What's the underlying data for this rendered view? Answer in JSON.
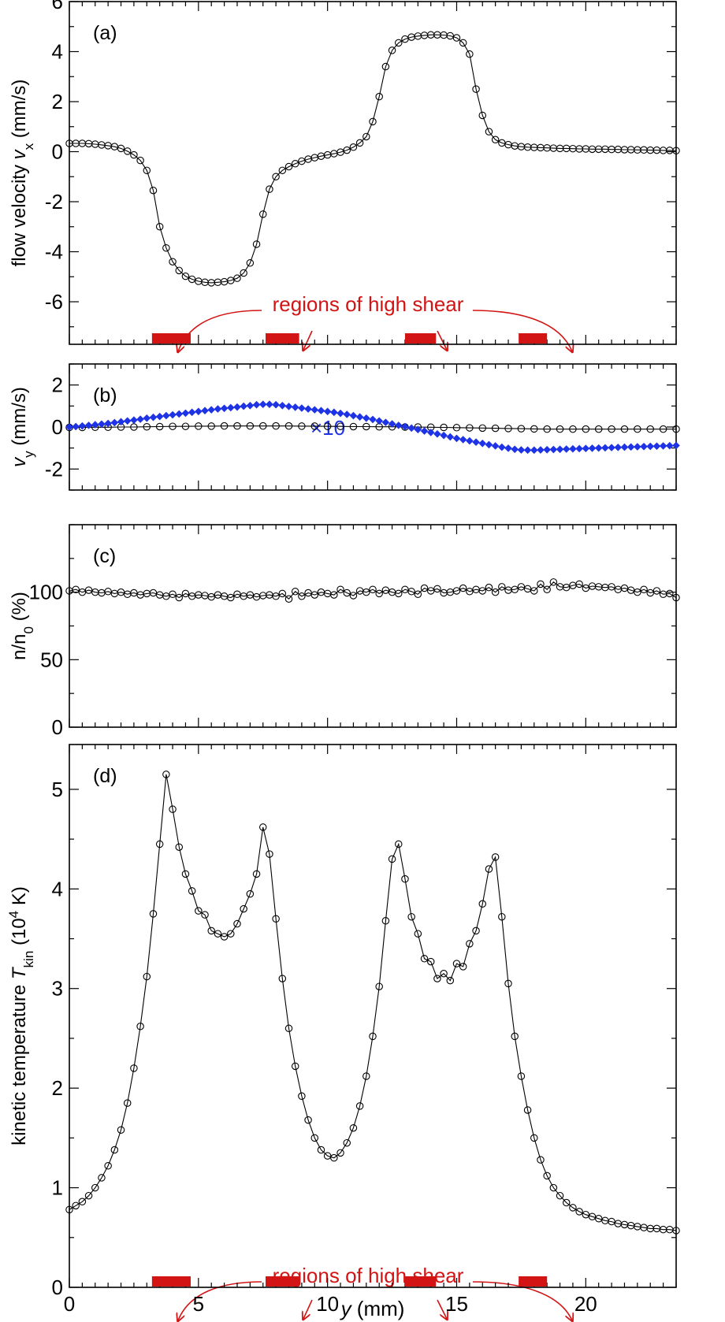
{
  "colors": {
    "axis": "#000000",
    "highlight": "#d21414",
    "blue": "#1e32e6"
  },
  "chart_data": [
    {
      "panel": "a",
      "type": "line",
      "panel_label": "(a)",
      "ylabel_parts": [
        "flow velocity ",
        "v",
        "x",
        " (mm/s)"
      ],
      "ylim": [
        -7.7,
        6
      ],
      "xlim": [
        0,
        23.5
      ],
      "yticks": [
        -6,
        -4,
        -2,
        0,
        2,
        4,
        6
      ],
      "ytick_labels": [
        "-6",
        "-4",
        "-2",
        "0",
        "2",
        "4",
        "6"
      ],
      "shear_regions": [
        [
          3.2,
          4.7
        ],
        [
          7.6,
          8.9
        ],
        [
          13.0,
          14.2
        ],
        [
          17.4,
          18.5
        ]
      ],
      "annotation": "regions of high shear",
      "series": [
        {
          "name": "vx",
          "marker": "open-circle",
          "x": [
            0.0,
            0.25,
            0.5,
            0.75,
            1.0,
            1.25,
            1.5,
            1.75,
            2.0,
            2.25,
            2.5,
            2.75,
            3.0,
            3.25,
            3.5,
            3.75,
            4.0,
            4.25,
            4.5,
            4.75,
            5.0,
            5.25,
            5.5,
            5.75,
            6.0,
            6.25,
            6.5,
            6.75,
            7.0,
            7.25,
            7.5,
            7.75,
            8.0,
            8.25,
            8.5,
            8.75,
            9.0,
            9.25,
            9.5,
            9.75,
            10.0,
            10.25,
            10.5,
            10.75,
            11.0,
            11.25,
            11.5,
            11.75,
            12.0,
            12.25,
            12.5,
            12.75,
            13.0,
            13.25,
            13.5,
            13.75,
            14.0,
            14.25,
            14.5,
            14.75,
            15.0,
            15.25,
            15.5,
            15.75,
            16.0,
            16.25,
            16.5,
            16.75,
            17.0,
            17.25,
            17.5,
            17.75,
            18.0,
            18.25,
            18.5,
            18.75,
            19.0,
            19.25,
            19.5,
            19.75,
            20.0,
            20.25,
            20.5,
            20.75,
            21.0,
            21.25,
            21.5,
            21.75,
            22.0,
            22.25,
            22.5,
            22.75,
            23.0,
            23.25,
            23.5
          ],
          "y": [
            0.33,
            0.33,
            0.33,
            0.32,
            0.3,
            0.27,
            0.24,
            0.2,
            0.13,
            0.02,
            -0.13,
            -0.35,
            -0.75,
            -1.55,
            -3.0,
            -3.85,
            -4.4,
            -4.75,
            -4.98,
            -5.1,
            -5.18,
            -5.22,
            -5.24,
            -5.22,
            -5.2,
            -5.15,
            -5.06,
            -4.85,
            -4.45,
            -3.7,
            -2.5,
            -1.5,
            -1.0,
            -0.75,
            -0.6,
            -0.48,
            -0.38,
            -0.3,
            -0.24,
            -0.18,
            -0.13,
            -0.08,
            -0.02,
            0.06,
            0.18,
            0.35,
            0.6,
            1.2,
            2.2,
            3.4,
            4.05,
            4.35,
            4.5,
            4.58,
            4.62,
            4.65,
            4.67,
            4.67,
            4.66,
            4.63,
            4.55,
            4.35,
            3.9,
            2.5,
            1.45,
            0.8,
            0.48,
            0.35,
            0.28,
            0.23,
            0.2,
            0.18,
            0.17,
            0.16,
            0.15,
            0.14,
            0.13,
            0.13,
            0.12,
            0.11,
            0.11,
            0.1,
            0.1,
            0.1,
            0.09,
            0.09,
            0.08,
            0.08,
            0.07,
            0.07,
            0.06,
            0.06,
            0.05,
            0.05,
            0.04
          ]
        }
      ]
    },
    {
      "panel": "b",
      "type": "line",
      "panel_label": "(b)",
      "ylabel_parts": [
        "v",
        "y",
        " (mm/s)"
      ],
      "ylim": [
        -3,
        3
      ],
      "xlim": [
        0,
        23.5
      ],
      "yticks": [
        -2,
        0,
        2
      ],
      "ytick_labels": [
        "-2",
        "0",
        "2"
      ],
      "annotation": "×10",
      "series": [
        {
          "name": "vy",
          "marker": "open-circle",
          "x": [
            0.0,
            0.5,
            1.0,
            1.5,
            2.0,
            2.5,
            3.0,
            3.5,
            4.0,
            4.5,
            5.0,
            5.5,
            6.0,
            6.5,
            7.0,
            7.5,
            8.0,
            8.5,
            9.0,
            9.5,
            10.0,
            10.5,
            11.0,
            11.5,
            12.0,
            12.5,
            13.0,
            13.5,
            14.0,
            14.5,
            15.0,
            15.5,
            16.0,
            16.5,
            17.0,
            17.5,
            18.0,
            18.5,
            19.0,
            19.5,
            20.0,
            20.5,
            21.0,
            21.5,
            22.0,
            22.5,
            23.0,
            23.5
          ],
          "y": [
            -0.02,
            -0.02,
            -0.01,
            -0.01,
            0.0,
            0.0,
            0.01,
            0.02,
            0.03,
            0.03,
            0.04,
            0.04,
            0.05,
            0.05,
            0.05,
            0.05,
            0.05,
            0.05,
            0.04,
            0.04,
            0.03,
            0.03,
            0.02,
            0.02,
            0.01,
            0.01,
            0.0,
            0.0,
            -0.01,
            -0.02,
            -0.03,
            -0.04,
            -0.05,
            -0.06,
            -0.07,
            -0.08,
            -0.09,
            -0.1,
            -0.1,
            -0.1,
            -0.1,
            -0.1,
            -0.1,
            -0.1,
            -0.1,
            -0.1,
            -0.1,
            -0.1
          ]
        },
        {
          "name": "vy ×10",
          "marker": "filled-diamond",
          "x": [
            0.0,
            0.25,
            0.5,
            0.75,
            1.0,
            1.25,
            1.5,
            1.75,
            2.0,
            2.25,
            2.5,
            2.75,
            3.0,
            3.25,
            3.5,
            3.75,
            4.0,
            4.25,
            4.5,
            4.75,
            5.0,
            5.25,
            5.5,
            5.75,
            6.0,
            6.25,
            6.5,
            6.75,
            7.0,
            7.25,
            7.5,
            7.75,
            8.0,
            8.25,
            8.5,
            8.75,
            9.0,
            9.25,
            9.5,
            9.75,
            10.0,
            10.25,
            10.5,
            10.75,
            11.0,
            11.25,
            11.5,
            11.75,
            12.0,
            12.25,
            12.5,
            12.75,
            13.0,
            13.25,
            13.5,
            13.75,
            14.0,
            14.25,
            14.5,
            14.75,
            15.0,
            15.25,
            15.5,
            15.75,
            16.0,
            16.25,
            16.5,
            16.75,
            17.0,
            17.25,
            17.5,
            17.75,
            18.0,
            18.25,
            18.5,
            18.75,
            19.0,
            19.25,
            19.5,
            19.75,
            20.0,
            20.25,
            20.5,
            20.75,
            21.0,
            21.25,
            21.5,
            21.75,
            22.0,
            22.25,
            22.5,
            22.75,
            23.0,
            23.25,
            23.5
          ],
          "y": [
            0.0,
            0.02,
            0.05,
            0.08,
            0.11,
            0.14,
            0.17,
            0.21,
            0.25,
            0.29,
            0.33,
            0.37,
            0.42,
            0.46,
            0.5,
            0.54,
            0.58,
            0.62,
            0.66,
            0.7,
            0.74,
            0.78,
            0.82,
            0.86,
            0.89,
            0.92,
            0.95,
            0.99,
            1.02,
            1.06,
            1.08,
            1.08,
            1.06,
            1.02,
            0.98,
            0.94,
            0.9,
            0.86,
            0.82,
            0.78,
            0.74,
            0.7,
            0.65,
            0.6,
            0.54,
            0.48,
            0.42,
            0.36,
            0.29,
            0.22,
            0.15,
            0.08,
            0.02,
            -0.05,
            -0.12,
            -0.19,
            -0.26,
            -0.33,
            -0.4,
            -0.47,
            -0.54,
            -0.6,
            -0.66,
            -0.72,
            -0.78,
            -0.84,
            -0.9,
            -0.96,
            -1.01,
            -1.06,
            -1.09,
            -1.1,
            -1.1,
            -1.09,
            -1.08,
            -1.07,
            -1.06,
            -1.05,
            -1.04,
            -1.03,
            -1.02,
            -1.01,
            -1.0,
            -0.99,
            -0.98,
            -0.97,
            -0.96,
            -0.95,
            -0.94,
            -0.93,
            -0.92,
            -0.91,
            -0.9,
            -0.89,
            -0.88
          ]
        }
      ]
    },
    {
      "panel": "c",
      "type": "line",
      "panel_label": "(c)",
      "ylabel_parts": [
        "n/n",
        "0",
        " (%)"
      ],
      "ylim": [
        0,
        150
      ],
      "xlim": [
        0,
        23.5
      ],
      "yticks": [
        0,
        50,
        100
      ],
      "ytick_labels": [
        "0",
        "50",
        "100"
      ],
      "series": [
        {
          "name": "n/n0",
          "marker": "open-circle",
          "x": [
            0.0,
            0.25,
            0.5,
            0.75,
            1.0,
            1.25,
            1.5,
            1.75,
            2.0,
            2.25,
            2.5,
            2.75,
            3.0,
            3.25,
            3.5,
            3.75,
            4.0,
            4.25,
            4.5,
            4.75,
            5.0,
            5.25,
            5.5,
            5.75,
            6.0,
            6.25,
            6.5,
            6.75,
            7.0,
            7.25,
            7.5,
            7.75,
            8.0,
            8.25,
            8.5,
            8.75,
            9.0,
            9.25,
            9.5,
            9.75,
            10.0,
            10.25,
            10.5,
            10.75,
            11.0,
            11.25,
            11.5,
            11.75,
            12.0,
            12.25,
            12.5,
            12.75,
            13.0,
            13.25,
            13.5,
            13.75,
            14.0,
            14.25,
            14.5,
            14.75,
            15.0,
            15.25,
            15.5,
            15.75,
            16.0,
            16.25,
            16.5,
            16.75,
            17.0,
            17.25,
            17.5,
            17.75,
            18.0,
            18.25,
            18.5,
            18.75,
            19.0,
            19.25,
            19.5,
            19.75,
            20.0,
            20.25,
            20.5,
            20.75,
            21.0,
            21.25,
            21.5,
            21.75,
            22.0,
            22.25,
            22.5,
            22.75,
            23.0,
            23.25,
            23.5
          ],
          "y": [
            101.0,
            102.0,
            100.0,
            101.5,
            100.0,
            99.5,
            100.5,
            99.0,
            100.0,
            98.5,
            99.5,
            98.0,
            99.0,
            99.5,
            98.0,
            97.0,
            98.5,
            96.0,
            99.0,
            97.0,
            98.0,
            97.5,
            96.5,
            98.0,
            97.0,
            96.0,
            98.5,
            97.0,
            98.0,
            96.5,
            97.5,
            98.0,
            97.0,
            99.0,
            95.0,
            100.5,
            97.0,
            99.5,
            98.0,
            100.0,
            99.0,
            98.0,
            102.0,
            99.5,
            97.5,
            101.0,
            100.0,
            102.0,
            99.0,
            101.5,
            100.0,
            99.0,
            102.0,
            100.5,
            98.5,
            103.0,
            101.0,
            102.5,
            99.5,
            100.0,
            101.0,
            103.0,
            100.5,
            102.0,
            101.0,
            103.5,
            100.0,
            104.0,
            101.5,
            102.0,
            104.0,
            102.5,
            101.0,
            106.0,
            102.0,
            107.5,
            104.0,
            103.5,
            105.0,
            106.0,
            103.0,
            104.5,
            104.0,
            103.5,
            104.0,
            102.0,
            103.0,
            101.5,
            100.0,
            102.0,
            99.5,
            101.0,
            98.5,
            99.0,
            96.0
          ]
        }
      ]
    },
    {
      "panel": "d",
      "type": "line",
      "panel_label": "(d)",
      "ylabel_parts": [
        "kinetic temperature ",
        "T",
        "kin",
        " (10",
        "4",
        " K)"
      ],
      "ylim": [
        0,
        5.45
      ],
      "xlim": [
        0,
        23.5
      ],
      "yticks": [
        0,
        1,
        2,
        3,
        4,
        5
      ],
      "ytick_labels": [
        "0",
        "1",
        "2",
        "3",
        "4",
        "5"
      ],
      "xticks": [
        0,
        5,
        10,
        15,
        20
      ],
      "xtick_labels": [
        "0",
        "5",
        "10",
        "15",
        "20"
      ],
      "xlabel_parts": [
        "y",
        " (mm)"
      ],
      "shear_regions": [
        [
          3.2,
          4.7
        ],
        [
          7.6,
          8.9
        ],
        [
          13.0,
          14.2
        ],
        [
          17.4,
          18.5
        ]
      ],
      "annotation": "regions of high shear",
      "series": [
        {
          "name": "Tkin",
          "marker": "open-circle",
          "x": [
            0.0,
            0.25,
            0.5,
            0.75,
            1.0,
            1.25,
            1.5,
            1.75,
            2.0,
            2.25,
            2.5,
            2.75,
            3.0,
            3.25,
            3.5,
            3.75,
            4.0,
            4.25,
            4.5,
            4.75,
            5.0,
            5.25,
            5.5,
            5.75,
            6.0,
            6.25,
            6.5,
            6.75,
            7.0,
            7.25,
            7.5,
            7.75,
            8.0,
            8.25,
            8.5,
            8.75,
            9.0,
            9.25,
            9.5,
            9.75,
            10.0,
            10.25,
            10.5,
            10.75,
            11.0,
            11.25,
            11.5,
            11.75,
            12.0,
            12.25,
            12.5,
            12.75,
            13.0,
            13.25,
            13.5,
            13.75,
            14.0,
            14.25,
            14.5,
            14.75,
            15.0,
            15.25,
            15.5,
            15.75,
            16.0,
            16.25,
            16.5,
            16.75,
            17.0,
            17.25,
            17.5,
            17.75,
            18.0,
            18.25,
            18.5,
            18.75,
            19.0,
            19.25,
            19.5,
            19.75,
            20.0,
            20.25,
            20.5,
            20.75,
            21.0,
            21.25,
            21.5,
            21.75,
            22.0,
            22.25,
            22.5,
            22.75,
            23.0,
            23.25,
            23.5
          ],
          "y": [
            0.78,
            0.82,
            0.86,
            0.92,
            1.0,
            1.1,
            1.22,
            1.38,
            1.58,
            1.85,
            2.2,
            2.62,
            3.12,
            3.75,
            4.45,
            5.15,
            4.8,
            4.42,
            4.15,
            3.98,
            3.78,
            3.74,
            3.58,
            3.55,
            3.52,
            3.55,
            3.65,
            3.8,
            3.95,
            4.15,
            4.62,
            4.35,
            3.7,
            3.1,
            2.6,
            2.22,
            1.92,
            1.68,
            1.5,
            1.38,
            1.32,
            1.3,
            1.35,
            1.45,
            1.6,
            1.82,
            2.12,
            2.52,
            3.02,
            3.68,
            4.3,
            4.45,
            4.1,
            3.72,
            3.55,
            3.3,
            3.27,
            3.1,
            3.15,
            3.08,
            3.25,
            3.22,
            3.45,
            3.58,
            3.85,
            4.2,
            4.32,
            3.72,
            3.05,
            2.52,
            2.12,
            1.78,
            1.5,
            1.28,
            1.12,
            1.0,
            0.92,
            0.85,
            0.8,
            0.76,
            0.73,
            0.71,
            0.69,
            0.67,
            0.66,
            0.64,
            0.63,
            0.62,
            0.61,
            0.6,
            0.59,
            0.59,
            0.58,
            0.58,
            0.57
          ]
        }
      ]
    }
  ]
}
